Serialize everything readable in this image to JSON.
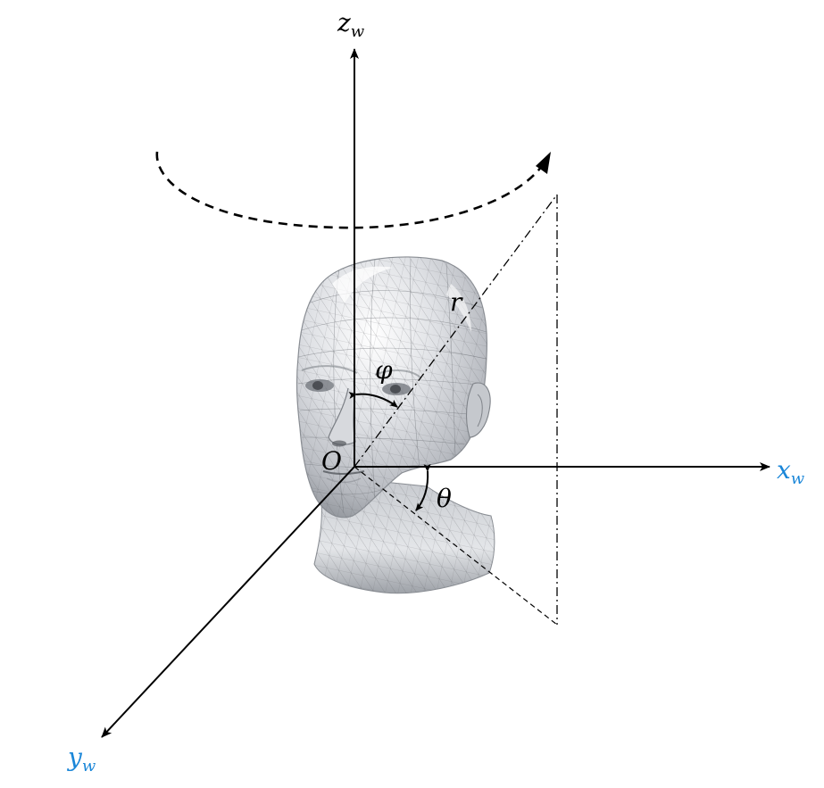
{
  "diagram": {
    "description_free": true,
    "labels": {
      "z_axis": {
        "base": "z",
        "sub": "w"
      },
      "x_axis": {
        "base": "x",
        "sub": "w"
      },
      "y_axis": {
        "base": "y",
        "sub": "w"
      },
      "origin": "O",
      "radius": "r",
      "elevation": "φ",
      "azimuth": "θ"
    },
    "colors": {
      "axis": "#000000",
      "blue_labels": "#1a86d8",
      "head_light": "#eef0f3",
      "head_mid": "#c9ccd1",
      "head_dark": "#8c9096",
      "mesh": "#6a6d72"
    },
    "icons": {
      "head": "head-mesh-icon",
      "rotation": "rotation-arrow-icon"
    }
  }
}
